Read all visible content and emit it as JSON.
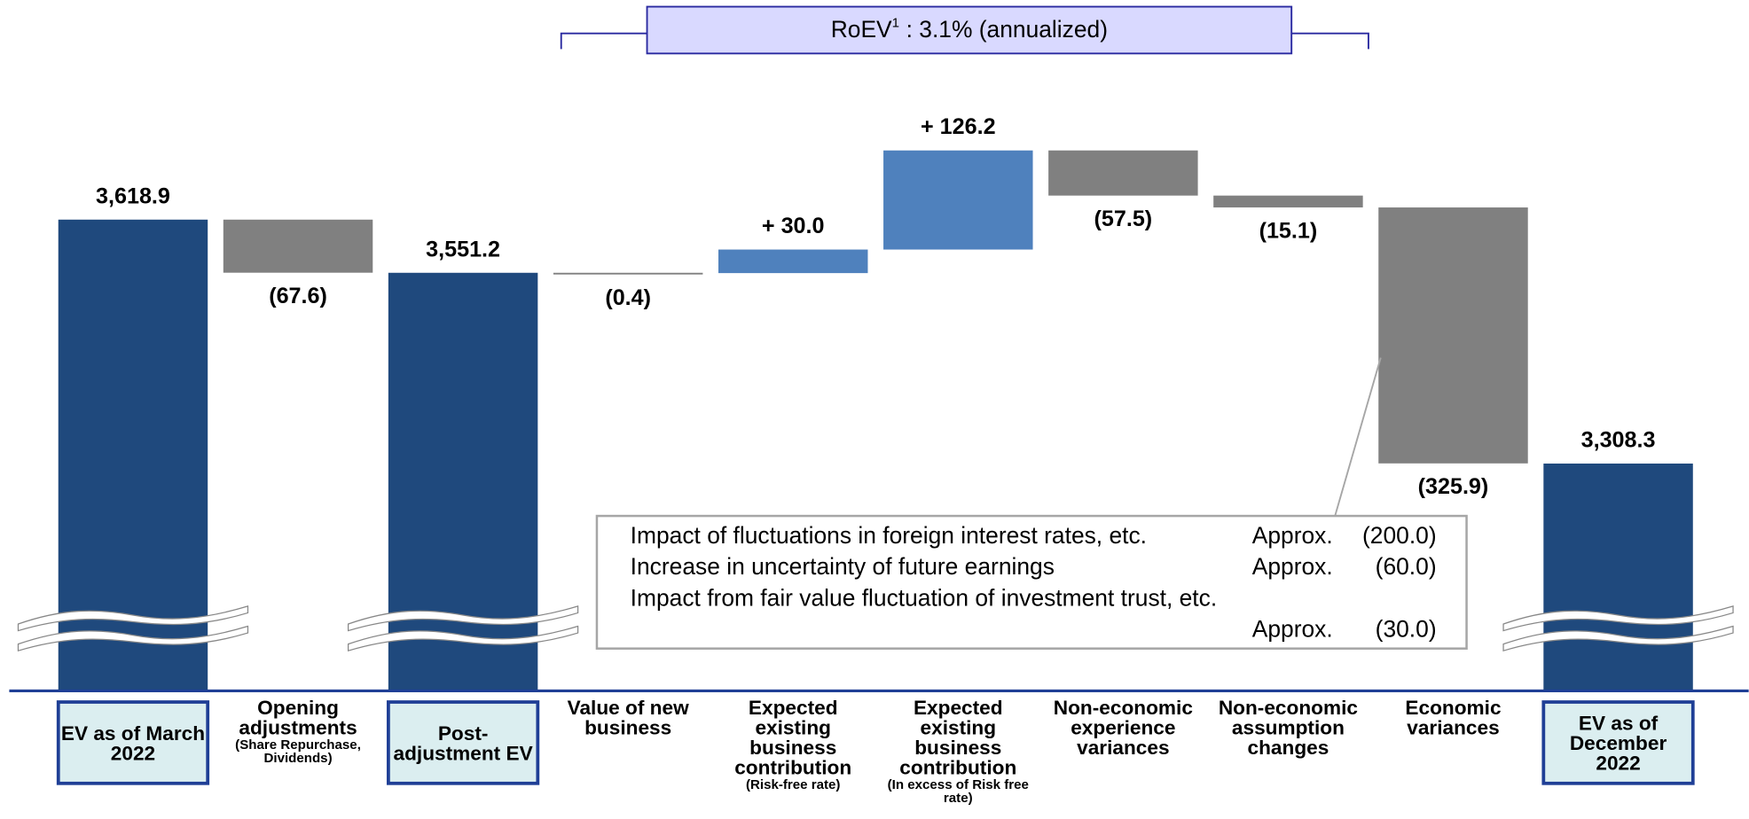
{
  "chart_data": {
    "type": "waterfall",
    "header": {
      "label": "RoEV",
      "sup": "1",
      "text": ": 3.1% (annualized)"
    },
    "categories": [
      "EV as of March 2022",
      "Opening adjustments",
      "Post-adjustment EV",
      "Value of new business",
      "Expected existing business contribution",
      "Expected existing business contribution",
      "Non-economic experience variances",
      "Non-economic assumption changes",
      "Economic variances",
      "EV as of December 2022"
    ],
    "category_notes": [
      null,
      "(Share Repurchase, Dividends)",
      null,
      null,
      "(Risk-free rate)",
      "(In excess of Risk free rate)",
      null,
      null,
      null,
      null
    ],
    "values": [
      3618.9,
      -67.6,
      3551.2,
      -0.4,
      30.0,
      126.2,
      -57.5,
      -15.1,
      -325.9,
      3308.3
    ],
    "value_labels": [
      "3,618.9",
      "(67.6)",
      "3,551.2",
      "(0.4)",
      "+ 30.0",
      "+ 126.2",
      "(57.5)",
      "(15.1)",
      "(325.9)",
      "3,308.3"
    ],
    "totals": [
      0,
      2,
      9
    ],
    "colors": {
      "total": "#1f497d",
      "increase": "#4f81bd",
      "decrease": "#808080"
    },
    "broken_axis": true,
    "annotation": {
      "category": 8,
      "rows": [
        {
          "text": "Impact of fluctuations in foreign interest rates, etc.",
          "approx": "Approx.",
          "amount": "(200.0)"
        },
        {
          "text": "Increase in uncertainty of future earnings",
          "approx": "Approx.",
          "amount": "(60.0)"
        },
        {
          "text": "Impact from fair value fluctuation of investment trust, etc.",
          "approx": "Approx.",
          "amount": "(30.0)"
        }
      ]
    }
  }
}
